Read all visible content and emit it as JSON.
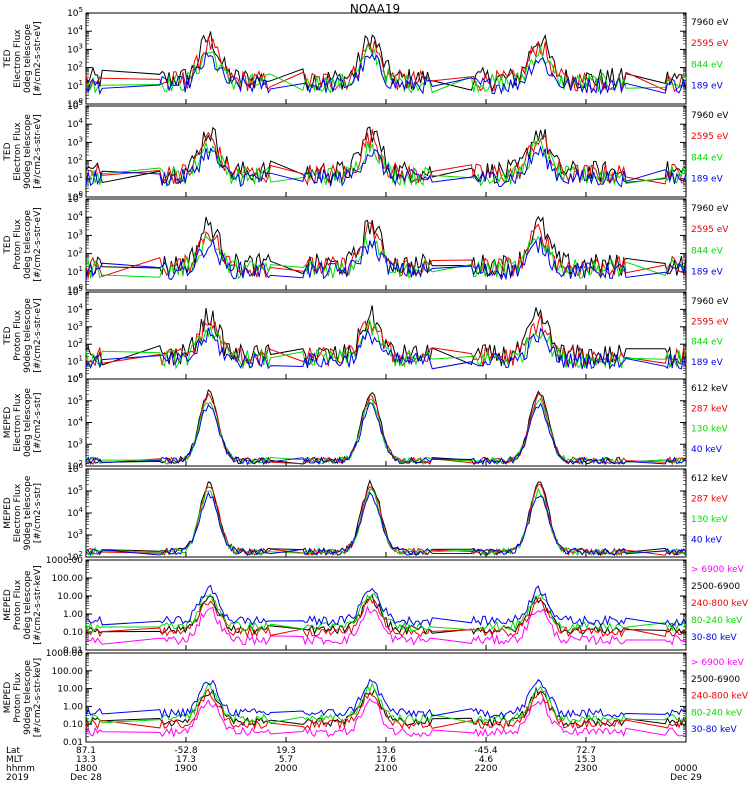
{
  "title": "NOAA19",
  "colors": {
    "black": "#000000",
    "red": "#ee0000",
    "green": "#00dd00",
    "blue": "#0000ee",
    "magenta": "#ff00ff"
  },
  "chart_data": [
    {
      "type": "line",
      "ylabel": [
        "TED",
        "Electron Flux",
        "0deg telescope",
        "[#/cm2-s-str-eV]"
      ],
      "yscale": "log",
      "ylim": [
        1,
        100000
      ],
      "yticks": [
        "10^0",
        "10^1",
        "10^2",
        "10^3",
        "10^4",
        "10^5"
      ],
      "series": [
        {
          "name": "7960 eV",
          "color": "black"
        },
        {
          "name": "2595 eV",
          "color": "red"
        },
        {
          "name": "844 eV",
          "color": "green"
        },
        {
          "name": "189 eV",
          "color": "blue"
        }
      ]
    },
    {
      "type": "line",
      "ylabel": [
        "TED",
        "Electron Flux",
        "90deg telescope",
        "[#/cm2-s-str-eV]"
      ],
      "yscale": "log",
      "ylim": [
        1,
        100000
      ],
      "yticks": [
        "10^0",
        "10^1",
        "10^2",
        "10^3",
        "10^4",
        "10^5"
      ],
      "series": [
        {
          "name": "7960 eV",
          "color": "black"
        },
        {
          "name": "2595 eV",
          "color": "red"
        },
        {
          "name": "844 eV",
          "color": "green"
        },
        {
          "name": "189 eV",
          "color": "blue"
        }
      ]
    },
    {
      "type": "line",
      "ylabel": [
        "TED",
        "Proton Flux",
        "0deg telescope",
        "[#/cm2-s-str-eV]"
      ],
      "yscale": "log",
      "ylim": [
        1,
        100000
      ],
      "yticks": [
        "10^0",
        "10^1",
        "10^2",
        "10^3",
        "10^4",
        "10^5"
      ],
      "series": [
        {
          "name": "7960 eV",
          "color": "black"
        },
        {
          "name": "2595 eV",
          "color": "red"
        },
        {
          "name": "844 eV",
          "color": "green"
        },
        {
          "name": "189 eV",
          "color": "blue"
        }
      ]
    },
    {
      "type": "line",
      "ylabel": [
        "TED",
        "Proton Flux",
        "90deg telescope",
        "[#/cm2-s-str-eV]"
      ],
      "yscale": "log",
      "ylim": [
        1,
        100000
      ],
      "yticks": [
        "10^0",
        "10^1",
        "10^2",
        "10^3",
        "10^4",
        "10^5"
      ],
      "series": [
        {
          "name": "7960 eV",
          "color": "black"
        },
        {
          "name": "2595 eV",
          "color": "red"
        },
        {
          "name": "844 eV",
          "color": "green"
        },
        {
          "name": "189 eV",
          "color": "blue"
        }
      ]
    },
    {
      "type": "line",
      "ylabel": [
        "MEPED",
        "Electron Flux",
        "0deg telescope",
        "[#/cm2-s-str]"
      ],
      "yscale": "log",
      "ylim": [
        100,
        1000000
      ],
      "yticks": [
        "10^2",
        "10^3",
        "10^4",
        "10^5",
        "10^6"
      ],
      "series": [
        {
          "name": "612 keV",
          "color": "black"
        },
        {
          "name": "287 keV",
          "color": "red"
        },
        {
          "name": "130 keV",
          "color": "green"
        },
        {
          "name": "40 keV",
          "color": "blue"
        }
      ]
    },
    {
      "type": "line",
      "ylabel": [
        "MEPED",
        "Electron Flux",
        "90deg telescope",
        "[#/cm2-s-str]"
      ],
      "yscale": "log",
      "ylim": [
        100,
        1000000
      ],
      "yticks": [
        "10^2",
        "10^3",
        "10^4",
        "10^5",
        "10^6"
      ],
      "series": [
        {
          "name": "612 keV",
          "color": "black"
        },
        {
          "name": "287 keV",
          "color": "red"
        },
        {
          "name": "130 keV",
          "color": "green"
        },
        {
          "name": "40 keV",
          "color": "blue"
        }
      ]
    },
    {
      "type": "line",
      "ylabel": [
        "MEPED",
        "Proton Flux",
        "0deg telescope",
        "[#/cm2-s-str-keV]"
      ],
      "yscale": "log",
      "ylim": [
        0.01,
        1000
      ],
      "yticks": [
        "0.01",
        "0.10",
        "1.00",
        "10.00",
        "100.00",
        "1000.00"
      ],
      "series": [
        {
          "name": "> 6900 keV",
          "color": "magenta"
        },
        {
          "name": "2500-6900",
          "color": "black"
        },
        {
          "name": "240-800 keV",
          "color": "red"
        },
        {
          "name": "80-240 keV",
          "color": "green"
        },
        {
          "name": "30-80 keV",
          "color": "blue"
        }
      ]
    },
    {
      "type": "line",
      "ylabel": [
        "MEPED",
        "Proton Flux",
        "90deg telescope",
        "[#/cm2-s-str-keV]"
      ],
      "yscale": "log",
      "ylim": [
        0.01,
        1000
      ],
      "yticks": [
        "0.01",
        "0.10",
        "1.00",
        "10.00",
        "100.00",
        "1000.00"
      ],
      "series": [
        {
          "name": "> 6900 keV",
          "color": "magenta"
        },
        {
          "name": "2500-6900",
          "color": "black"
        },
        {
          "name": "240-800 keV",
          "color": "red"
        },
        {
          "name": "80-240 keV",
          "color": "green"
        },
        {
          "name": "30-80 keV",
          "color": "blue"
        }
      ]
    }
  ],
  "xaxis": {
    "row_labels": [
      "Lat",
      "MLT",
      "hhmm",
      "2019"
    ],
    "columns": [
      {
        "lat": "87.1",
        "mlt": "13.3",
        "hhmm": "1800",
        "date": "Dec 28"
      },
      {
        "lat": "-52.8",
        "mlt": "17.3",
        "hhmm": "1900",
        "date": ""
      },
      {
        "lat": "19.3",
        "mlt": "5.7",
        "hhmm": "2000",
        "date": ""
      },
      {
        "lat": "13.6",
        "mlt": "17.6",
        "hhmm": "2100",
        "date": ""
      },
      {
        "lat": "-45.4",
        "mlt": "4.6",
        "hhmm": "2200",
        "date": ""
      },
      {
        "lat": "72.7",
        "mlt": "15.3",
        "hhmm": "2300",
        "date": ""
      },
      {
        "lat": "",
        "mlt": "",
        "hhmm": "0000",
        "date": "Dec 29"
      }
    ]
  }
}
